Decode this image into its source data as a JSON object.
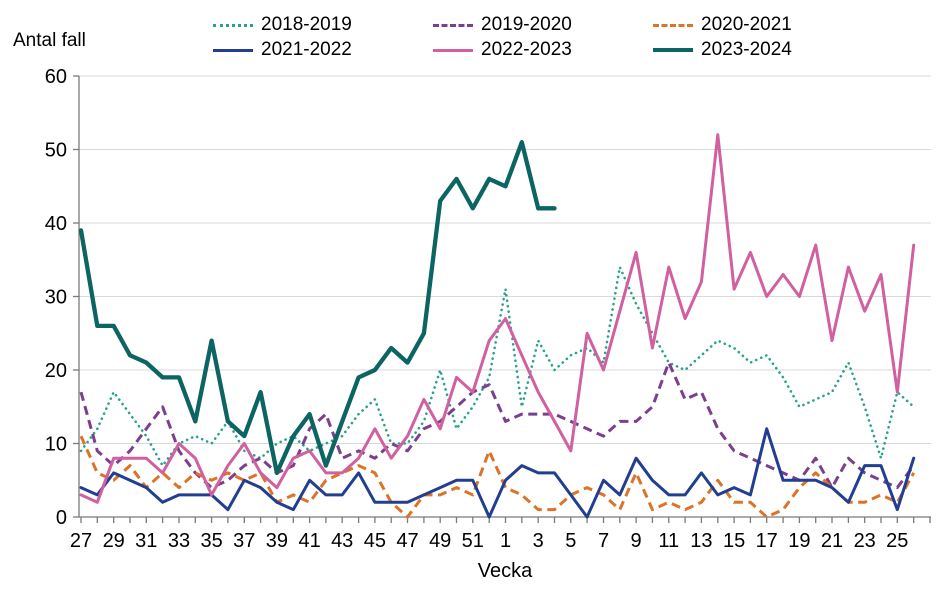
{
  "y_axis_title": "Antal fall",
  "x_axis_title": "Vecka",
  "colors": {
    "grid": "#d9d9d9",
    "axis": "#7a7a7a",
    "text": "#000000"
  },
  "chart_data": {
    "type": "line",
    "grid": "horizontal",
    "legend_position": "top",
    "ylim": [
      0,
      60
    ],
    "y_ticks": [
      0,
      10,
      20,
      30,
      40,
      50,
      60
    ],
    "weeks": [
      27,
      28,
      29,
      30,
      31,
      32,
      33,
      34,
      35,
      36,
      37,
      38,
      39,
      40,
      41,
      42,
      43,
      44,
      45,
      46,
      47,
      48,
      49,
      50,
      51,
      52,
      1,
      2,
      3,
      4,
      5,
      6,
      7,
      8,
      9,
      10,
      11,
      12,
      13,
      14,
      15,
      16,
      17,
      18,
      19,
      20,
      21,
      22,
      23,
      24,
      25,
      26
    ],
    "x_tick_labels": [
      "27",
      "29",
      "31",
      "33",
      "35",
      "37",
      "39",
      "41",
      "43",
      "45",
      "47",
      "49",
      "51",
      "1",
      "3",
      "5",
      "7",
      "9",
      "11",
      "13",
      "15",
      "17",
      "19",
      "21",
      "23",
      "25"
    ],
    "series": [
      {
        "name": "2018-2019",
        "style": "dotted",
        "color": "#2aa18f",
        "values": [
          9,
          12,
          17,
          14,
          11,
          7,
          10,
          11,
          10,
          13,
          9,
          8,
          10,
          11,
          9,
          10,
          11,
          14,
          16,
          10,
          10,
          13,
          20,
          12,
          15,
          19,
          31,
          15,
          24,
          20,
          22,
          23,
          21,
          34,
          29,
          25,
          21,
          20,
          22,
          24,
          23,
          21,
          22,
          19,
          15,
          16,
          17,
          21,
          15,
          8,
          17,
          15
        ]
      },
      {
        "name": "2019-2020",
        "style": "dashed",
        "color": "#7b3f8f",
        "values": [
          17,
          9,
          7,
          9,
          12,
          15,
          9,
          6,
          4,
          5,
          7,
          8,
          6,
          7,
          12,
          14,
          8,
          9,
          8,
          10,
          9,
          12,
          13,
          15,
          17,
          18,
          13,
          14,
          14,
          14,
          13,
          12,
          11,
          13,
          13,
          15,
          21,
          16,
          17,
          12,
          9,
          8,
          7,
          6,
          5,
          8,
          4,
          8,
          6,
          5,
          4,
          7
        ]
      },
      {
        "name": "2020-2021",
        "style": "dashed",
        "color": "#dd7327",
        "values": [
          11,
          6,
          5,
          7,
          4,
          6,
          4,
          6,
          5,
          6,
          5,
          6,
          2,
          3,
          2,
          5,
          6,
          7,
          6,
          2,
          0,
          3,
          3,
          4,
          3,
          9,
          4,
          3,
          1,
          1,
          3,
          4,
          3,
          1,
          6,
          1,
          2,
          1,
          2,
          5,
          2,
          2,
          0,
          1,
          4,
          6,
          4,
          2,
          2,
          3,
          2,
          6
        ]
      },
      {
        "name": "2021-2022",
        "style": "solid",
        "color": "#213e90",
        "values": [
          4,
          3,
          6,
          5,
          4,
          2,
          3,
          3,
          3,
          1,
          5,
          4,
          2,
          1,
          5,
          3,
          3,
          6,
          2,
          2,
          2,
          3,
          4,
          5,
          5,
          0,
          5,
          7,
          6,
          6,
          3,
          0,
          5,
          3,
          8,
          5,
          3,
          3,
          6,
          3,
          4,
          3,
          12,
          5,
          5,
          5,
          4,
          2,
          7,
          7,
          1,
          8
        ]
      },
      {
        "name": "2022-2023",
        "style": "solid",
        "color": "#d0609f",
        "values": [
          3,
          2,
          8,
          8,
          8,
          6,
          10,
          8,
          3,
          7,
          10,
          6,
          4,
          8,
          9,
          6,
          6,
          8,
          12,
          8,
          11,
          16,
          12,
          19,
          17,
          24,
          27,
          22,
          17,
          13,
          9,
          25,
          20,
          28,
          36,
          23,
          34,
          27,
          32,
          52,
          31,
          36,
          30,
          33,
          30,
          37,
          24,
          34,
          28,
          33,
          17,
          37
        ]
      },
      {
        "name": "2023-2024",
        "style": "solid-thick",
        "color": "#0d6563",
        "values": [
          39,
          26,
          26,
          22,
          21,
          19,
          19,
          13,
          24,
          13,
          11,
          17,
          6,
          11,
          14,
          7,
          13,
          19,
          20,
          23,
          21,
          25,
          43,
          46,
          42,
          46,
          45,
          51,
          42,
          42
        ]
      }
    ]
  }
}
